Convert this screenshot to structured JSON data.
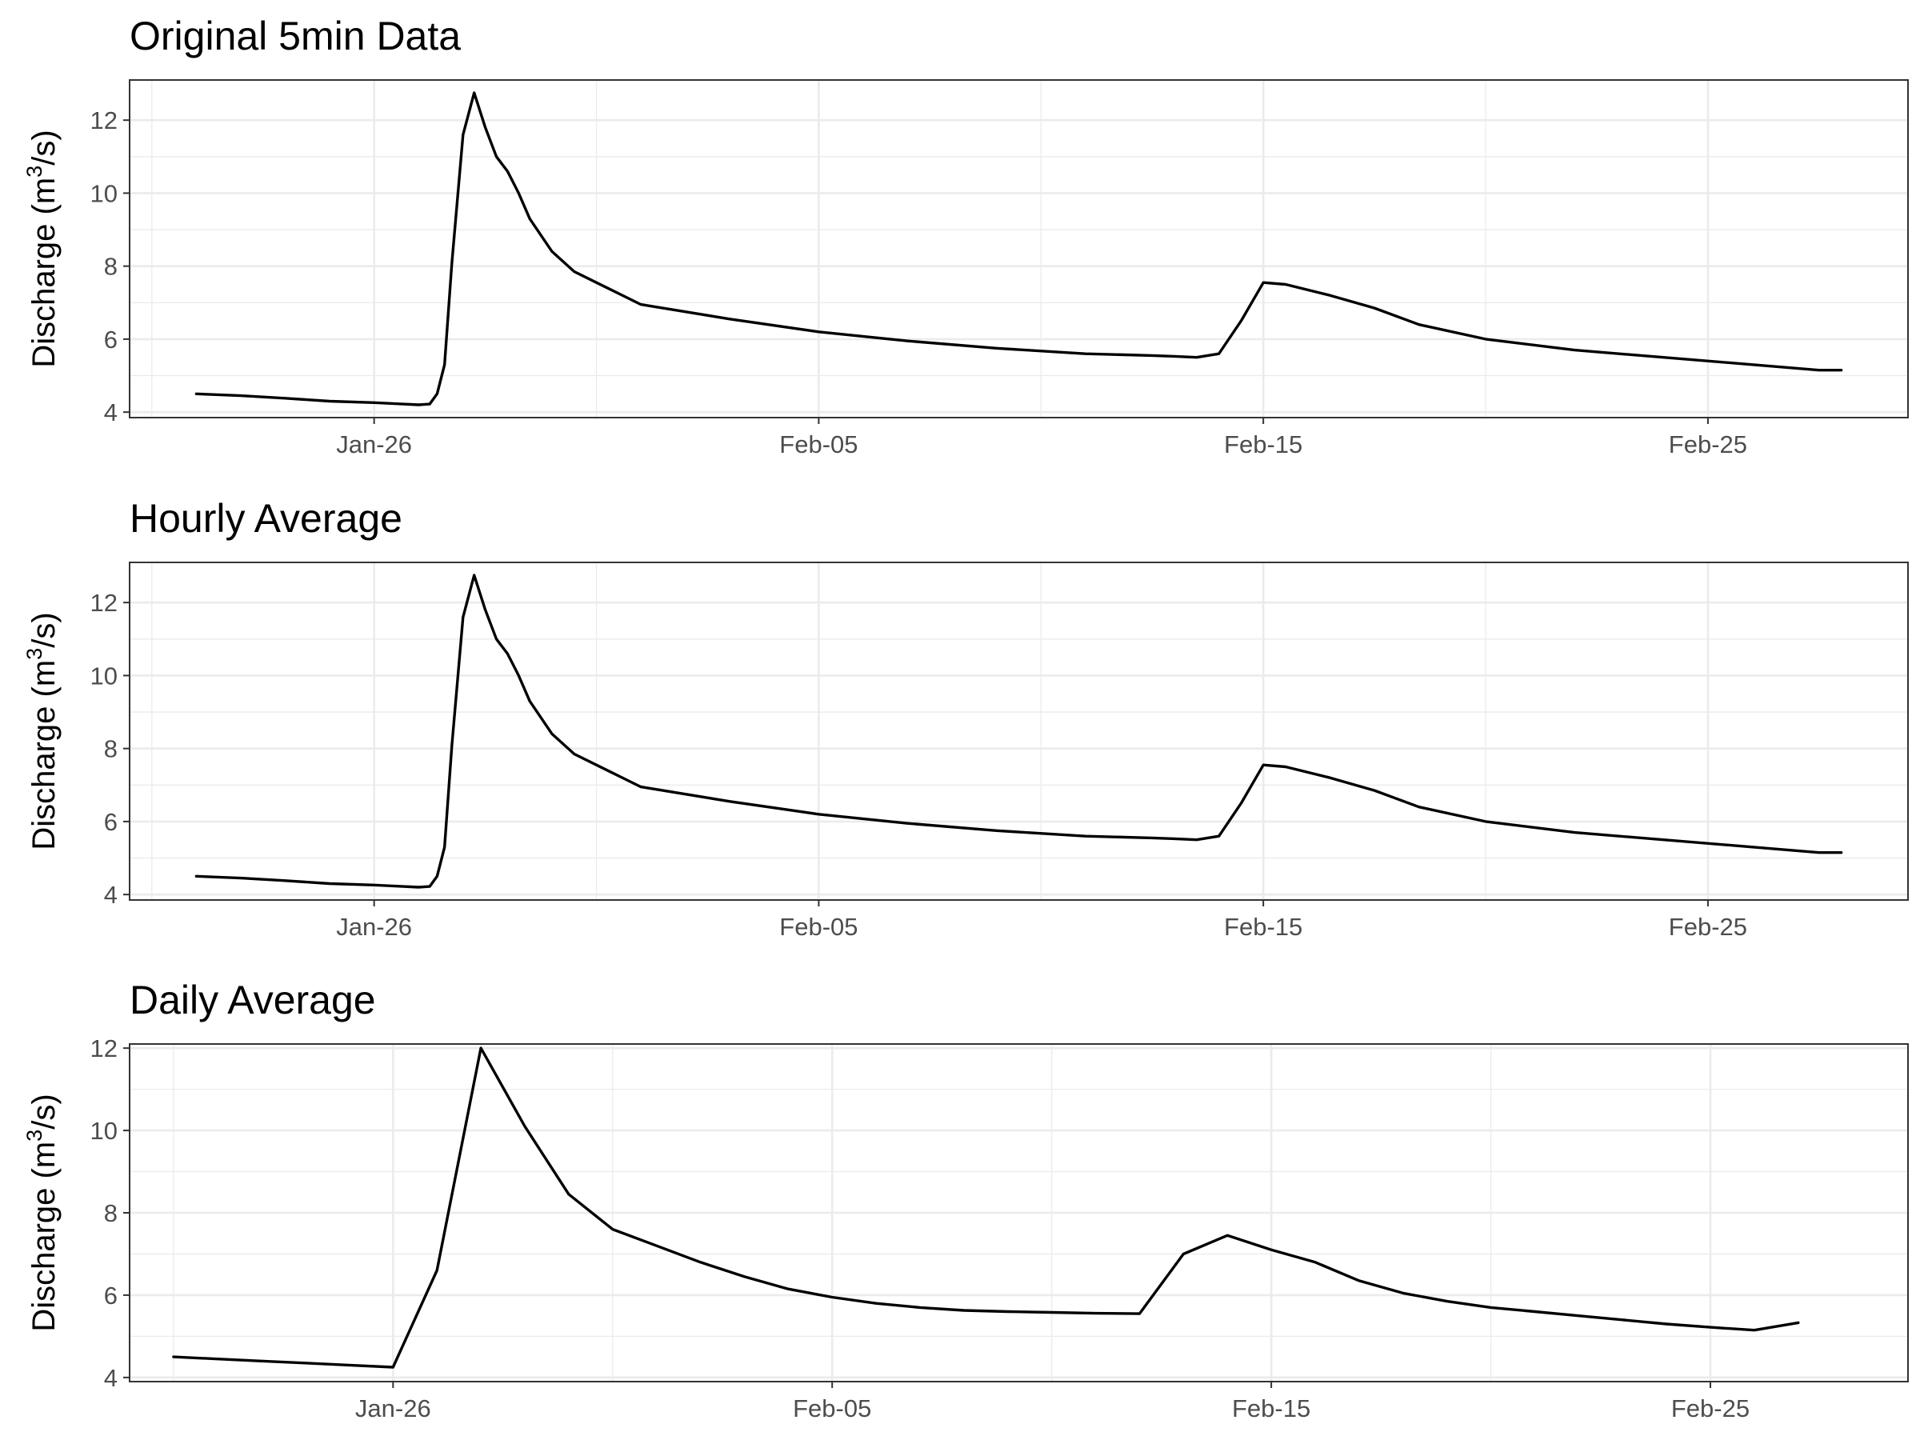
{
  "figure": {
    "background": "#ffffff",
    "line_color": "#000000",
    "grid_color": "#ebebeb",
    "panel_border_color": "#333333"
  },
  "chart_data": [
    {
      "type": "line",
      "title": "Original 5min Data",
      "xlabel": "",
      "ylabel": {
        "prefix": "Discharge (m",
        "sup": "3",
        "suffix": "/s)"
      },
      "x_type": "date",
      "xlim": [
        "2024-01-20T12:00",
        "2024-02-29T12:00"
      ],
      "ylim": [
        3.85,
        13.1
      ],
      "x_ticks": [
        {
          "date": "2024-01-26",
          "label": "Jan-26"
        },
        {
          "date": "2024-02-05",
          "label": "Feb-05"
        },
        {
          "date": "2024-02-15",
          "label": "Feb-15"
        },
        {
          "date": "2024-02-25",
          "label": "Feb-25"
        }
      ],
      "x_minor_ticks": [
        "2024-01-21",
        "2024-01-31",
        "2024-02-10",
        "2024-02-20"
      ],
      "y_ticks": [
        4,
        6,
        8,
        10,
        12
      ],
      "y_minor_ticks": [
        5,
        7,
        9,
        11
      ],
      "grid": true,
      "series": [
        {
          "x": [
            "2024-01-22T00:00",
            "2024-01-23T00:00",
            "2024-01-24T00:00",
            "2024-01-25T00:00",
            "2024-01-26T00:00",
            "2024-01-27T00:00",
            "2024-01-27T06:00",
            "2024-01-27T10:00",
            "2024-01-27T14:00",
            "2024-01-27T18:00",
            "2024-01-28T00:00",
            "2024-01-28T06:00",
            "2024-01-28T12:00",
            "2024-01-28T18:00",
            "2024-01-29T00:00",
            "2024-01-29T06:00",
            "2024-01-29T12:00",
            "2024-01-30T00:00",
            "2024-01-30T12:00",
            "2024-01-31T00:00",
            "2024-01-31T12:00",
            "2024-02-01T00:00",
            "2024-02-03T00:00",
            "2024-02-05T00:00",
            "2024-02-07T00:00",
            "2024-02-09T00:00",
            "2024-02-11T00:00",
            "2024-02-12T12:00",
            "2024-02-13T00:00",
            "2024-02-13T12:00",
            "2024-02-14T00:00",
            "2024-02-14T12:00",
            "2024-02-15T00:00",
            "2024-02-15T12:00",
            "2024-02-16T12:00",
            "2024-02-17T12:00",
            "2024-02-18T12:00",
            "2024-02-20T00:00",
            "2024-02-22T00:00",
            "2024-02-24T00:00",
            "2024-02-26T00:00",
            "2024-02-27T12:00",
            "2024-02-28T00:00"
          ],
          "y": [
            4.5,
            4.45,
            4.38,
            4.3,
            4.26,
            4.2,
            4.22,
            4.5,
            5.3,
            8.1,
            11.6,
            12.75,
            11.8,
            11.0,
            10.6,
            10.0,
            9.3,
            8.4,
            7.85,
            7.55,
            7.25,
            6.95,
            6.55,
            6.2,
            5.95,
            5.75,
            5.6,
            5.55,
            5.53,
            5.5,
            5.6,
            6.5,
            7.55,
            7.5,
            7.2,
            6.85,
            6.4,
            6.0,
            5.7,
            5.5,
            5.3,
            5.15,
            5.15
          ]
        }
      ]
    },
    {
      "type": "line",
      "title": "Hourly Average",
      "xlabel": "",
      "ylabel": {
        "prefix": "Discharge (m",
        "sup": "3",
        "suffix": "/s)"
      },
      "x_type": "date",
      "xlim": [
        "2024-01-20T12:00",
        "2024-02-29T12:00"
      ],
      "ylim": [
        3.85,
        13.1
      ],
      "x_ticks": [
        {
          "date": "2024-01-26",
          "label": "Jan-26"
        },
        {
          "date": "2024-02-05",
          "label": "Feb-05"
        },
        {
          "date": "2024-02-15",
          "label": "Feb-15"
        },
        {
          "date": "2024-02-25",
          "label": "Feb-25"
        }
      ],
      "x_minor_ticks": [
        "2024-01-21",
        "2024-01-31",
        "2024-02-10",
        "2024-02-20"
      ],
      "y_ticks": [
        4,
        6,
        8,
        10,
        12
      ],
      "y_minor_ticks": [
        5,
        7,
        9,
        11
      ],
      "grid": true,
      "series": [
        {
          "x": [
            "2024-01-22T00:00",
            "2024-01-23T00:00",
            "2024-01-24T00:00",
            "2024-01-25T00:00",
            "2024-01-26T00:00",
            "2024-01-27T00:00",
            "2024-01-27T06:00",
            "2024-01-27T10:00",
            "2024-01-27T14:00",
            "2024-01-27T18:00",
            "2024-01-28T00:00",
            "2024-01-28T06:00",
            "2024-01-28T12:00",
            "2024-01-28T18:00",
            "2024-01-29T00:00",
            "2024-01-29T06:00",
            "2024-01-29T12:00",
            "2024-01-30T00:00",
            "2024-01-30T12:00",
            "2024-01-31T00:00",
            "2024-01-31T12:00",
            "2024-02-01T00:00",
            "2024-02-03T00:00",
            "2024-02-05T00:00",
            "2024-02-07T00:00",
            "2024-02-09T00:00",
            "2024-02-11T00:00",
            "2024-02-12T12:00",
            "2024-02-13T00:00",
            "2024-02-13T12:00",
            "2024-02-14T00:00",
            "2024-02-14T12:00",
            "2024-02-15T00:00",
            "2024-02-15T12:00",
            "2024-02-16T12:00",
            "2024-02-17T12:00",
            "2024-02-18T12:00",
            "2024-02-20T00:00",
            "2024-02-22T00:00",
            "2024-02-24T00:00",
            "2024-02-26T00:00",
            "2024-02-27T12:00",
            "2024-02-28T00:00"
          ],
          "y": [
            4.5,
            4.45,
            4.38,
            4.3,
            4.26,
            4.2,
            4.22,
            4.5,
            5.3,
            8.1,
            11.6,
            12.75,
            11.8,
            11.0,
            10.6,
            10.0,
            9.3,
            8.4,
            7.85,
            7.55,
            7.25,
            6.95,
            6.55,
            6.2,
            5.95,
            5.75,
            5.6,
            5.55,
            5.53,
            5.5,
            5.6,
            6.5,
            7.55,
            7.5,
            7.2,
            6.85,
            6.4,
            6.0,
            5.7,
            5.5,
            5.3,
            5.15,
            5.15
          ]
        }
      ]
    },
    {
      "type": "line",
      "title": "Daily Average",
      "xlabel": "",
      "ylabel": {
        "prefix": "Discharge (m",
        "sup": "3",
        "suffix": "/s)"
      },
      "x_type": "date",
      "xlim": [
        "2024-01-20T00:00",
        "2024-02-29T12:00"
      ],
      "ylim": [
        3.9,
        12.1
      ],
      "x_ticks": [
        {
          "date": "2024-01-26",
          "label": "Jan-26"
        },
        {
          "date": "2024-02-05",
          "label": "Feb-05"
        },
        {
          "date": "2024-02-15",
          "label": "Feb-15"
        },
        {
          "date": "2024-02-25",
          "label": "Feb-25"
        }
      ],
      "x_minor_ticks": [
        "2024-01-21",
        "2024-01-31",
        "2024-02-10",
        "2024-02-20"
      ],
      "y_ticks": [
        4,
        6,
        8,
        10,
        12
      ],
      "y_minor_ticks": [
        5,
        7,
        9,
        11
      ],
      "grid": true,
      "series": [
        {
          "x": [
            "2024-01-21",
            "2024-01-22",
            "2024-01-23",
            "2024-01-24",
            "2024-01-25",
            "2024-01-26",
            "2024-01-27",
            "2024-01-28",
            "2024-01-29",
            "2024-01-30",
            "2024-01-31",
            "2024-02-01",
            "2024-02-02",
            "2024-02-03",
            "2024-02-04",
            "2024-02-05",
            "2024-02-06",
            "2024-02-07",
            "2024-02-08",
            "2024-02-09",
            "2024-02-10",
            "2024-02-11",
            "2024-02-12",
            "2024-02-13",
            "2024-02-14",
            "2024-02-15",
            "2024-02-16",
            "2024-02-17",
            "2024-02-18",
            "2024-02-19",
            "2024-02-20",
            "2024-02-21",
            "2024-02-22",
            "2024-02-23",
            "2024-02-24",
            "2024-02-25",
            "2024-02-26",
            "2024-02-27"
          ],
          "y": [
            4.5,
            4.45,
            4.4,
            4.35,
            4.3,
            4.25,
            6.6,
            12.0,
            10.1,
            8.45,
            7.6,
            7.2,
            6.8,
            6.45,
            6.15,
            5.95,
            5.8,
            5.7,
            5.63,
            5.6,
            5.58,
            5.56,
            5.55,
            7.0,
            7.45,
            7.1,
            6.8,
            6.35,
            6.05,
            5.85,
            5.7,
            5.6,
            5.5,
            5.4,
            5.3,
            5.22,
            5.15,
            5.33
          ]
        }
      ]
    }
  ]
}
